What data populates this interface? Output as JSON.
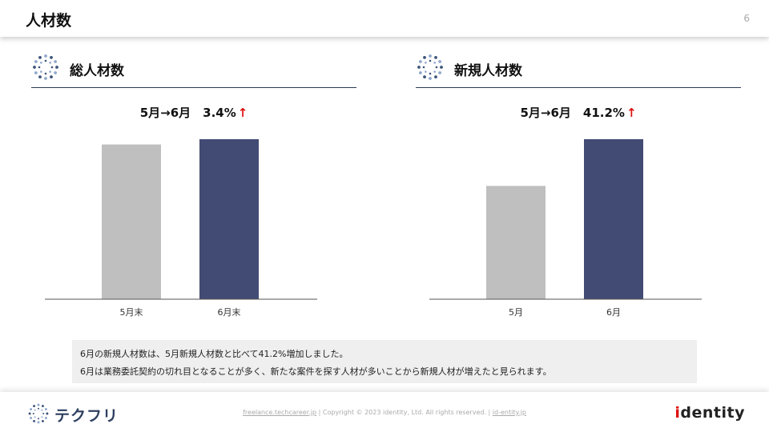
{
  "header": {
    "title": "人材数",
    "page_number": "6"
  },
  "panels": [
    {
      "title": "総人材数",
      "change_label": "5月→6月　3.4%",
      "arrow": "↑"
    },
    {
      "title": "新規人材数",
      "change_label": "5月→6月　41.2%",
      "arrow": "↑"
    }
  ],
  "chart_data": [
    {
      "type": "bar",
      "categories": [
        "5月末",
        "6月末"
      ],
      "values": [
        96.7,
        100
      ],
      "ylim": [
        0,
        100
      ],
      "colors": [
        "#bfbfbf",
        "#424b74"
      ]
    },
    {
      "type": "bar",
      "categories": [
        "5月",
        "6月"
      ],
      "values": [
        70.8,
        100
      ],
      "ylim": [
        0,
        100
      ],
      "colors": [
        "#bfbfbf",
        "#424b74"
      ]
    }
  ],
  "note": {
    "line1": "6月の新規人材数は、5月新規人材数と比べて41.2%増加しました。",
    "line2": "6月は業務委託契約の切れ目となることが多く、新たな案件を探す人材が多いことから新規人材が増えたと見られます。"
  },
  "footer": {
    "brand": "テクフリ",
    "link1": "freelance.techcareer.jp",
    "sep1": " | ",
    "copyright": "Copyright © 2023 identity, Ltd. All rights reserved.",
    "sep2": " | ",
    "link2": "id-entity.jp",
    "logo_i": "i",
    "logo_rest": "dentity"
  },
  "colors": {
    "accent": "#d11111",
    "bar_current": "#424b74",
    "bar_prev": "#bfbfbf",
    "rule": "#2a3a55"
  }
}
